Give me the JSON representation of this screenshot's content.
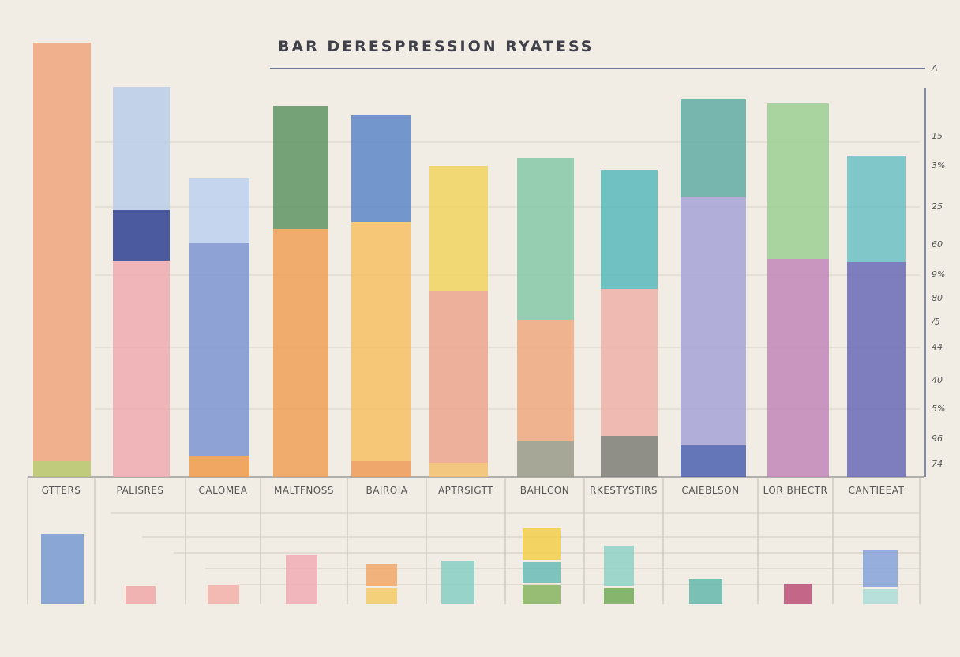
{
  "chart_data": {
    "type": "bar",
    "stacked": true,
    "title": "BAR DERESPRESSION RYATESS",
    "xlabel": "",
    "ylabel": "",
    "ylim": [
      0,
      100
    ],
    "grid": true,
    "y_tick_labels": [
      "A",
      "15",
      "3%",
      "25",
      "60",
      "9%",
      "80",
      "/5",
      "44",
      "40",
      "5%",
      "96",
      "74"
    ],
    "categories": [
      "GTTERS",
      "PALISRES",
      "CALOMEA",
      "MALTFNOSS",
      "BAIROIA",
      "APTRSIGTT",
      "BAHLCON",
      "RKESTYSTIRS",
      "CAIEBLSON",
      "LOR BHECTR",
      "CANTIEEAT"
    ],
    "bars": [
      {
        "segments": [
          {
            "value": 3.6,
            "color": "#b9c46a"
          },
          {
            "value": 96.4,
            "color": "#f1a47e"
          }
        ]
      },
      {
        "segments": [
          {
            "value": 49.8,
            "color": "#eeaab0"
          },
          {
            "value": 11.6,
            "color": "#2e3f93"
          },
          {
            "value": 28.4,
            "color": "#b8ccea"
          }
        ]
      },
      {
        "segments": [
          {
            "value": 4.9,
            "color": "#ee9a4a"
          },
          {
            "value": 48.9,
            "color": "#7e94d3"
          },
          {
            "value": 14.9,
            "color": "#bcd0ee"
          }
        ]
      },
      {
        "segments": [
          {
            "value": 57.1,
            "color": "#f0a058"
          },
          {
            "value": 28.4,
            "color": "#5f9464"
          }
        ]
      },
      {
        "segments": [
          {
            "value": 3.6,
            "color": "#ef9a56"
          },
          {
            "value": 55.1,
            "color": "#f6c064"
          },
          {
            "value": 24.5,
            "color": "#5d86c8"
          }
        ]
      },
      {
        "segments": [
          {
            "value": 3.3,
            "color": "#f4c070"
          },
          {
            "value": 39.6,
            "color": "#eca48e"
          },
          {
            "value": 28.7,
            "color": "#f2d460"
          }
        ]
      },
      {
        "segments": [
          {
            "value": 8.2,
            "color": "#9a9a8a"
          },
          {
            "value": 28.0,
            "color": "#f0a880"
          },
          {
            "value": 37.3,
            "color": "#86c8a8"
          }
        ]
      },
      {
        "segments": [
          {
            "value": 9.5,
            "color": "#7e7e78"
          },
          {
            "value": 33.8,
            "color": "#eeb0a8"
          },
          {
            "value": 27.5,
            "color": "#58b8bc"
          }
        ]
      },
      {
        "segments": [
          {
            "value": 7.3,
            "color": "#4b5fb0"
          },
          {
            "value": 57.1,
            "color": "#a6a2d8"
          },
          {
            "value": 22.5,
            "color": "#60aca6"
          }
        ]
      },
      {
        "segments": [
          {
            "value": 50.2,
            "color": "#c286b8"
          },
          {
            "value": 35.8,
            "color": "#9ccf94"
          }
        ]
      },
      {
        "segments": [
          {
            "value": 49.5,
            "color": "#6a6ab8"
          },
          {
            "value": 24.5,
            "color": "#6cc0c4"
          }
        ]
      }
    ],
    "mini_bars": [
      [
        {
          "value": 74,
          "color": "#6e94d0"
        }
      ],
      [
        {
          "value": 19,
          "color": "#f0a4a4"
        }
      ],
      [
        {
          "value": 20,
          "color": "#f2aca8"
        }
      ],
      [
        {
          "value": 52,
          "color": "#f0a8b0"
        }
      ],
      [
        {
          "value": 17,
          "color": "#f4c860"
        },
        {
          "value": 23,
          "color": "#f0a460"
        }
      ],
      [
        {
          "value": 46,
          "color": "#80ccc0"
        }
      ],
      [
        {
          "value": 20,
          "color": "#80b058"
        },
        {
          "value": 22,
          "color": "#60b8b4"
        },
        {
          "value": 33,
          "color": "#f2cc40"
        }
      ],
      [
        {
          "value": 17,
          "color": "#6aa650"
        },
        {
          "value": 42,
          "color": "#8ad0c4"
        }
      ],
      [
        {
          "value": 27,
          "color": "#5cb4a8"
        }
      ],
      [
        {
          "value": 22,
          "color": "#b84470"
        }
      ],
      [
        {
          "value": 16,
          "color": "#a8dcd8"
        },
        {
          "value": 38,
          "color": "#7e9ed8"
        }
      ]
    ]
  }
}
